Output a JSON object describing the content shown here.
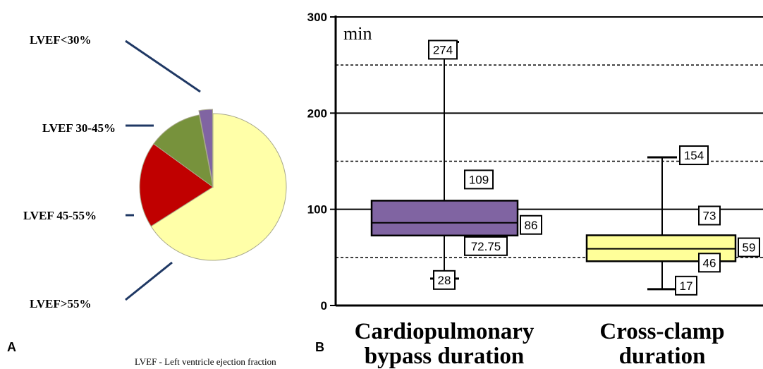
{
  "panel_a_letter": "A",
  "panel_b_letter": "B",
  "footnote": "LVEF - Left ventricle ejection fraction",
  "chart_data": [
    {
      "type": "pie",
      "panel": "A",
      "slices": [
        {
          "label": "LVEF>55%",
          "value": 66,
          "color": "#FFFFA8"
        },
        {
          "label": "LVEF 45-55%",
          "value": 19,
          "color": "#C00000"
        },
        {
          "label": "LVEF 30-45%",
          "value": 12,
          "color": "#77923C"
        },
        {
          "label": "LVEF<30%",
          "value": 3,
          "color": "#8064A2"
        }
      ],
      "start_angle_deg": 0,
      "exploded_slice": "LVEF<30%",
      "leader_line_color": "#1F3864"
    },
    {
      "type": "box",
      "panel": "B",
      "unit_label": "min",
      "ylim": [
        0,
        300
      ],
      "yticks": [
        0,
        100,
        200,
        300
      ],
      "dashed_gridlines": [
        50,
        150,
        250
      ],
      "solid_gridlines": [
        100,
        200,
        300
      ],
      "boxes": [
        {
          "category": "Cardiopulmonary bypass duration",
          "category_lines": [
            "Cardiopulmonary",
            "bypass duration"
          ],
          "min": 28,
          "q1": 72.75,
          "median": 86,
          "q3": 109,
          "max": 274,
          "labels": {
            "max": "274",
            "q3": "109",
            "median": "86",
            "q1": "72.75",
            "min": "28"
          },
          "color": "#8064A2"
        },
        {
          "category": "Cross-clamp duration",
          "category_lines": [
            "Cross-clamp",
            "duration"
          ],
          "min": 17,
          "q1": 46,
          "median": 59,
          "q3": 73,
          "max": 154,
          "labels": {
            "max": "154",
            "q3": "73",
            "median": "59",
            "q1": "46",
            "min": "17"
          },
          "color": "#FFFF99"
        }
      ]
    }
  ]
}
